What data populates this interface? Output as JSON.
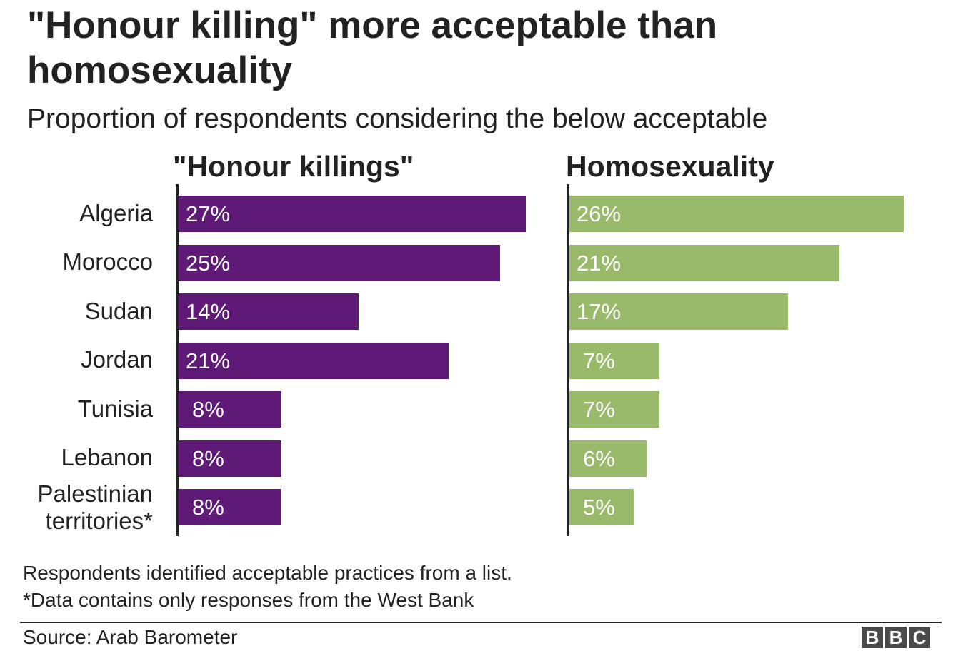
{
  "chart_data": {
    "type": "bar",
    "orientation": "horizontal",
    "title": "\"Honour killing\" more acceptable than homosexuality",
    "subtitle": "Proportion of respondents considering the below acceptable",
    "categories": [
      "Algeria",
      "Morocco",
      "Sudan",
      "Jordan",
      "Tunisia",
      "Lebanon",
      "Palestinian territories*"
    ],
    "category_lines": [
      [
        "Algeria"
      ],
      [
        "Morocco"
      ],
      [
        "Sudan"
      ],
      [
        "Jordan"
      ],
      [
        "Tunisia"
      ],
      [
        "Lebanon"
      ],
      [
        "Palestinian",
        "territories*"
      ]
    ],
    "series": [
      {
        "name": "\"Honour killings\"",
        "values": [
          27,
          25,
          14,
          21,
          8,
          8,
          8
        ],
        "labels": [
          "27%",
          "25%",
          "14%",
          "21%",
          "8%",
          "8%",
          "8%"
        ],
        "color": "#5f1a78"
      },
      {
        "name": "Homosexuality",
        "values": [
          26,
          21,
          17,
          7,
          7,
          6,
          5
        ],
        "labels": [
          "26%",
          "21%",
          "17%",
          "7%",
          "7%",
          "6%",
          "5%"
        ],
        "color": "#9aba6b"
      }
    ],
    "unit": "%",
    "grid": false,
    "notes": [
      "Respondents identified acceptable practices from a list.",
      "*Data contains only responses from the West Bank"
    ],
    "source": "Source: Arab Barometer"
  },
  "logo": {
    "letters": [
      "B",
      "B",
      "C"
    ],
    "color": "#4a4a4a"
  }
}
